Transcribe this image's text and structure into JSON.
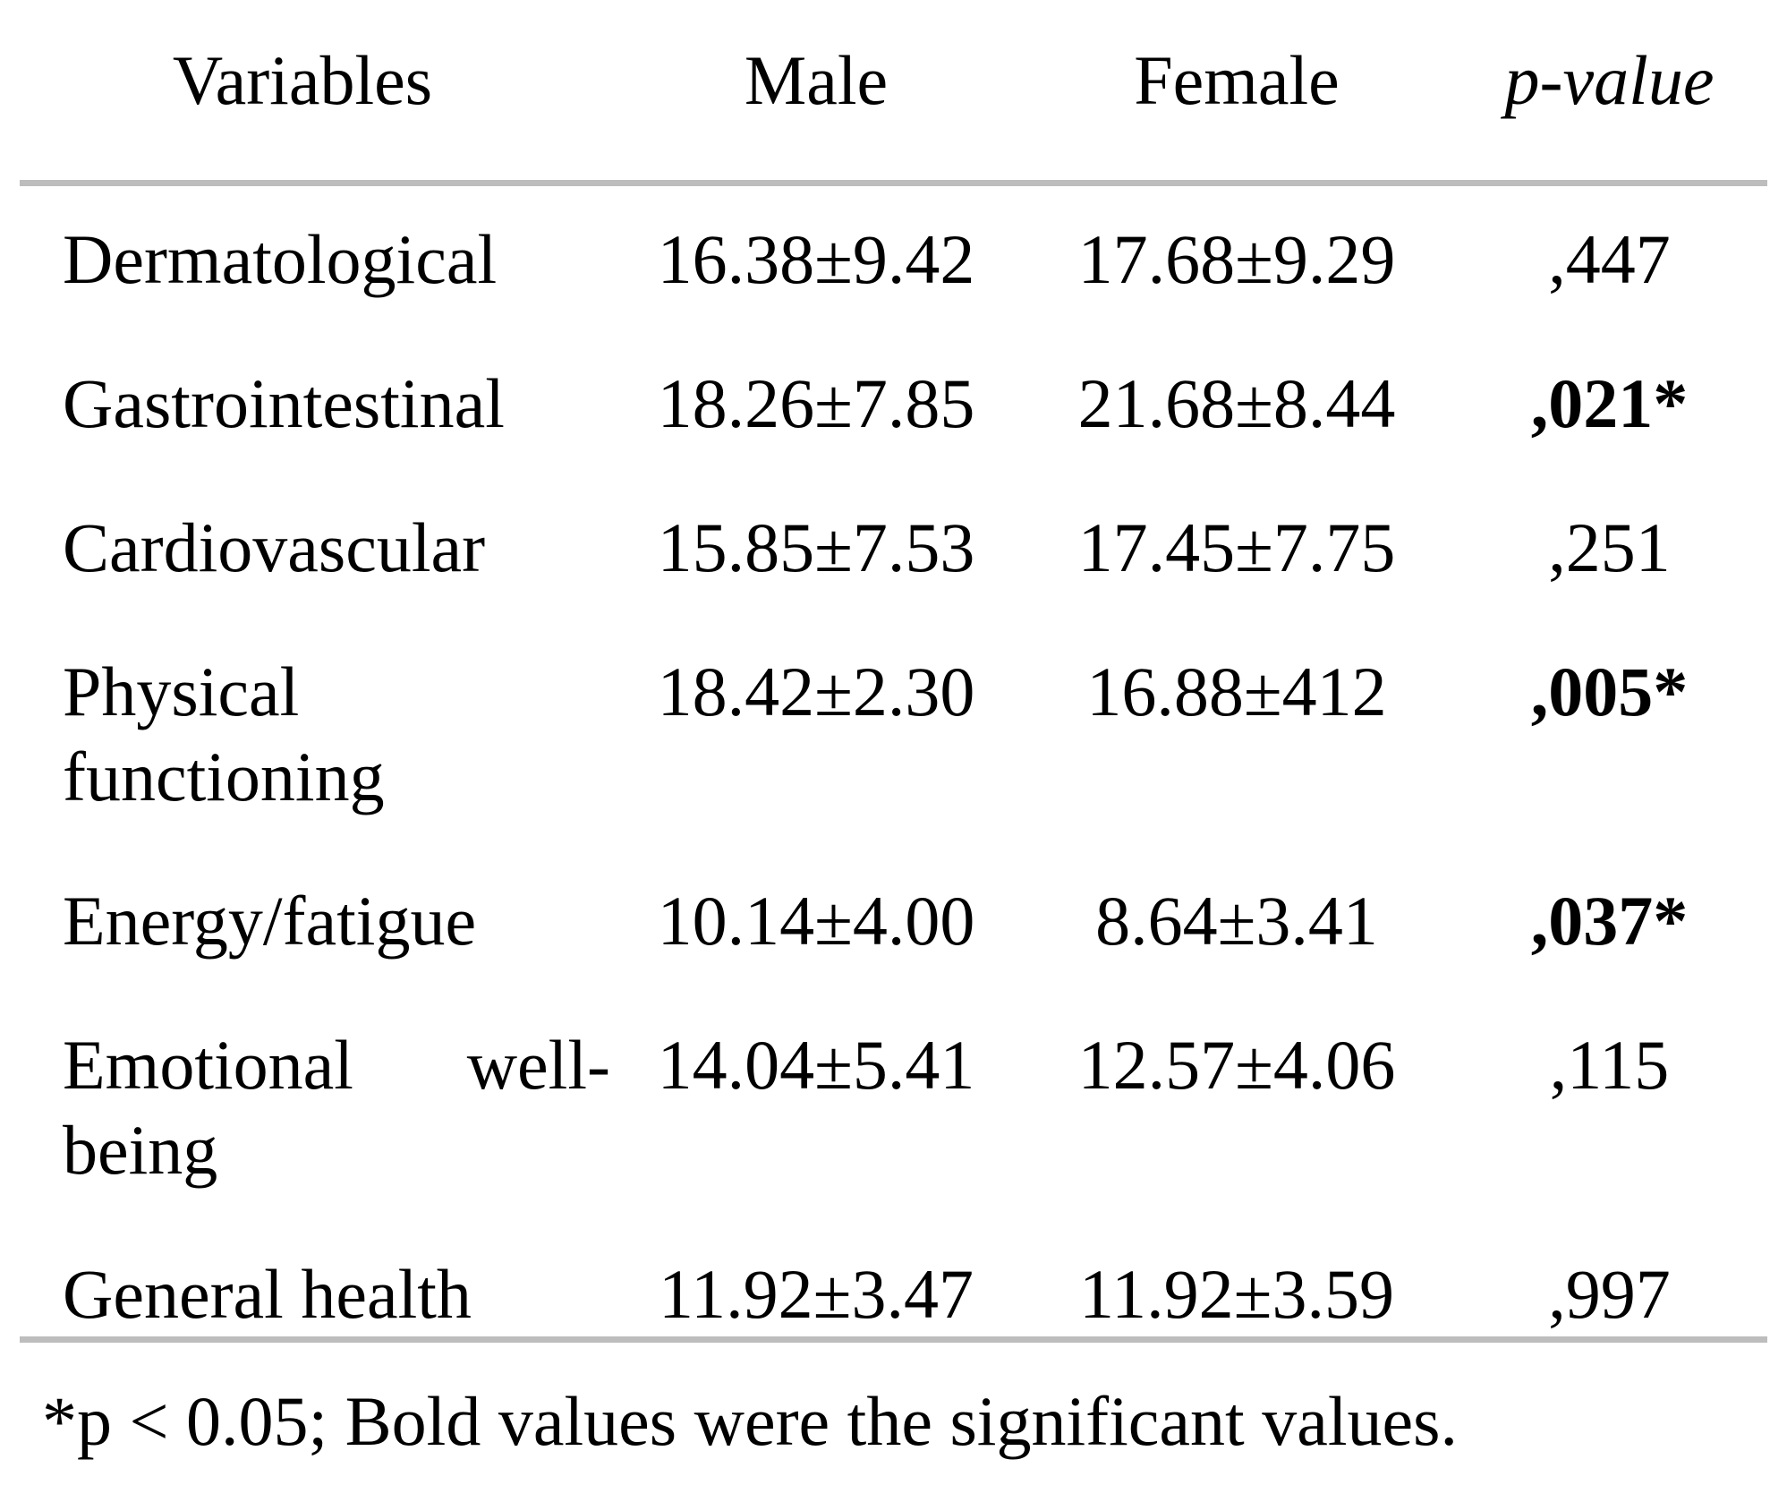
{
  "table": {
    "columns": [
      "Variables",
      "Male",
      "Female",
      "p-value"
    ],
    "rows": [
      {
        "variable": "Dermatological",
        "male": "16.38±9.42",
        "female": "17.68±9.29",
        "p": ",447",
        "significant": false
      },
      {
        "variable": "Gastrointestinal",
        "male": "18.26±7.85",
        "female": "21.68±8.44",
        "p": ",021*",
        "significant": true
      },
      {
        "variable": "Cardiovascular",
        "male": "15.85±7.53",
        "female": "17.45±7.75",
        "p": ",251",
        "significant": false
      },
      {
        "variable": "Physical functioning",
        "male": "18.42±2.30",
        "female": "16.88±412",
        "p": ",005*",
        "significant": true
      },
      {
        "variable": "Energy/fatigue",
        "male": "10.14±4.00",
        "female": "8.64±3.41",
        "p": ",037*",
        "significant": true
      },
      {
        "variable": "Emotional well-being",
        "male": "14.04±5.41",
        "female": "12.57±4.06",
        "p": ",115",
        "significant": false
      },
      {
        "variable": "General health",
        "male": "11.92±3.47",
        "female": "11.92±3.59",
        "p": ",997",
        "significant": false
      }
    ],
    "footnote": "*p < 0.05; Bold values were the significant values."
  },
  "colors": {
    "background": "#ffffff",
    "text": "#000000",
    "rule": "#bdbdbd"
  }
}
